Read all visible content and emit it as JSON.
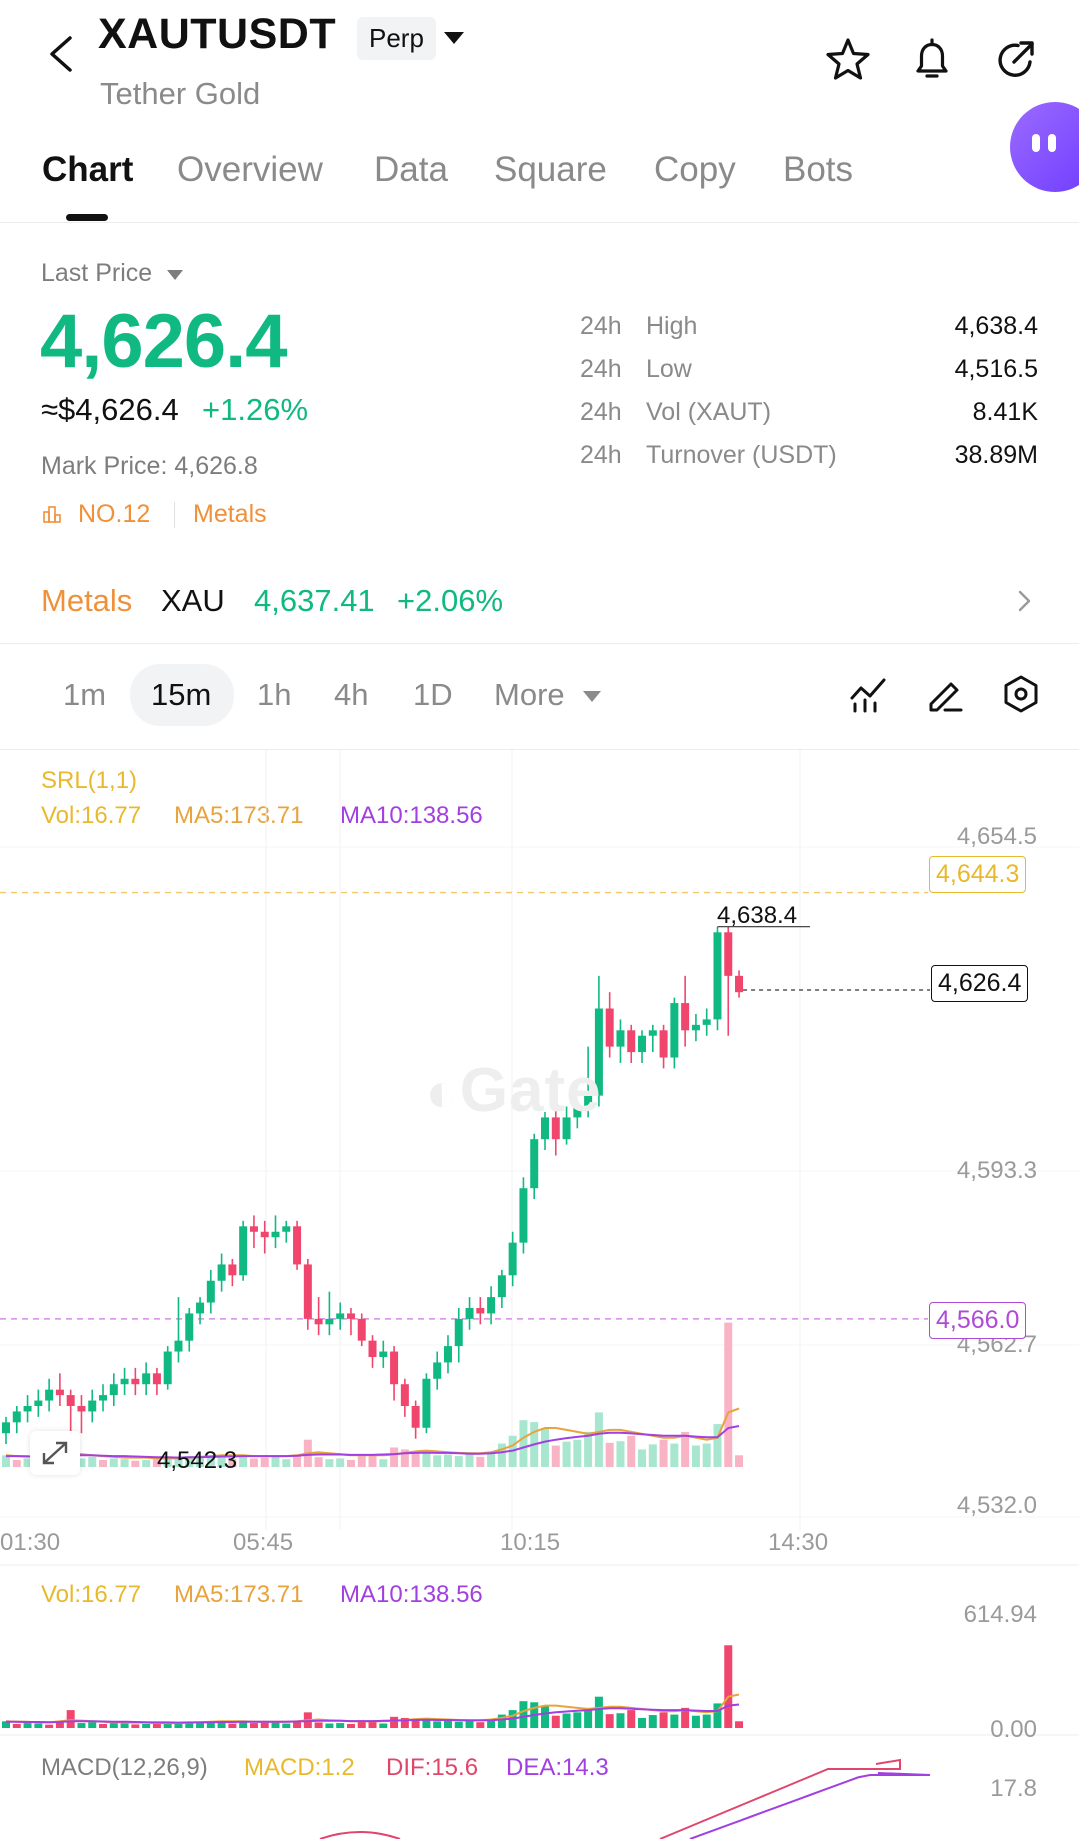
{
  "header": {
    "symbol": "XAUTUSDT",
    "contract_type": "Perp",
    "name": "Tether Gold",
    "icons": [
      "back-arrow-icon",
      "star-icon",
      "bell-icon",
      "share-icon",
      "chat-bubble-icon"
    ]
  },
  "tabs": [
    {
      "label": "Chart",
      "active": true
    },
    {
      "label": "Overview",
      "active": false
    },
    {
      "label": "Data",
      "active": false
    },
    {
      "label": "Square",
      "active": false
    },
    {
      "label": "Copy",
      "active": false
    },
    {
      "label": "Bots",
      "active": false
    }
  ],
  "price": {
    "label": "Last Price",
    "last": "4,626.4",
    "usd": "≈$4,626.4",
    "change": "+1.26%",
    "mark": "Mark Price: 4,626.8",
    "rank": "NO.12",
    "category": "Metals"
  },
  "stats": [
    {
      "period": "24h",
      "label": "High",
      "value": "4,638.4"
    },
    {
      "period": "24h",
      "label": "Low",
      "value": "4,516.5"
    },
    {
      "period": "24h",
      "label": "Vol (XAUT)",
      "value": "8.41K"
    },
    {
      "period": "24h",
      "label": "Turnover (USDT)",
      "value": "38.89M"
    }
  ],
  "index": {
    "category": "Metals",
    "symbol": "XAU",
    "price": "4,637.41",
    "change": "+2.06%"
  },
  "intervals": [
    {
      "label": "1m",
      "active": false
    },
    {
      "label": "15m",
      "active": true
    },
    {
      "label": "1h",
      "active": false
    },
    {
      "label": "4h",
      "active": false
    },
    {
      "label": "1D",
      "active": false
    },
    {
      "label": "More",
      "active": false
    }
  ],
  "tool_icons": [
    "indicator-icon",
    "draw-pen-icon",
    "settings-hex-icon"
  ],
  "indicators": {
    "srl": "SRL(1,1)",
    "vol": "Vol:16.77",
    "ma5": "MA5:173.71",
    "ma10": "MA10:138.56",
    "macd_name": "MACD(12,26,9)",
    "macd": "MACD:1.2",
    "dif": "DIF:15.6",
    "dea": "DEA:14.3"
  },
  "colors": {
    "up": "#10b981",
    "down": "#f0456c",
    "accent": "#f0913a",
    "ma5": "#e8a33d",
    "ma10": "#a23fe0",
    "srl_high": "#e8b92d",
    "srl_low": "#b04ad6"
  },
  "watermark": "Gate",
  "chart_data": {
    "type": "candlestick",
    "y_ticks": [
      "4,654.5",
      "4,593.3",
      "4,562.7",
      "4,532.0"
    ],
    "y_range": [
      4532.0,
      4654.5
    ],
    "x_ticks": [
      "01:30",
      "05:45",
      "10:15",
      "14:30"
    ],
    "last_price_tag": "4,626.4",
    "srl_high_tag": "4,644.3",
    "srl_low_tag": "4,566.0",
    "high_label": "4,638.4",
    "low_label": "4,542.3",
    "volume_axis": [
      "614.94",
      "0.00"
    ],
    "macd_axis_top": "17.8",
    "candles": [
      [
        4545,
        4547,
        4543,
        4548,
        1
      ],
      [
        4547,
        4549,
        4545,
        4550,
        1
      ],
      [
        4549,
        4550,
        4547,
        4552,
        1
      ],
      [
        4550,
        4551,
        4548,
        4553,
        1
      ],
      [
        4551,
        4553,
        4549,
        4555,
        1
      ],
      [
        4553,
        4552,
        4550,
        4556,
        0
      ],
      [
        4552,
        4550,
        4542,
        4553,
        0
      ],
      [
        4550,
        4549,
        4545,
        4552,
        0
      ],
      [
        4549,
        4551,
        4547,
        4553,
        1
      ],
      [
        4551,
        4552,
        4549,
        4554,
        1
      ],
      [
        4552,
        4554,
        4550,
        4556,
        1
      ],
      [
        4554,
        4555,
        4552,
        4557,
        1
      ],
      [
        4555,
        4554,
        4552,
        4557,
        0
      ],
      [
        4554,
        4556,
        4552,
        4558,
        1
      ],
      [
        4556,
        4554,
        4552,
        4557,
        0
      ],
      [
        4554,
        4560,
        4553,
        4561,
        1
      ],
      [
        4560,
        4562,
        4558,
        4570,
        1
      ],
      [
        4562,
        4567,
        4560,
        4568,
        1
      ],
      [
        4567,
        4569,
        4565,
        4570,
        1
      ],
      [
        4569,
        4573,
        4567,
        4575,
        1
      ],
      [
        4573,
        4576,
        4571,
        4578,
        1
      ],
      [
        4576,
        4574,
        4572,
        4577,
        0
      ],
      [
        4574,
        4583,
        4573,
        4584,
        1
      ],
      [
        4583,
        4582,
        4579,
        4585,
        0
      ],
      [
        4582,
        4581,
        4578,
        4584,
        0
      ],
      [
        4581,
        4582,
        4579,
        4585,
        1
      ],
      [
        4582,
        4583,
        4580,
        4584,
        1
      ],
      [
        4583,
        4576,
        4575,
        4584,
        0
      ],
      [
        4576,
        4566,
        4564,
        4577,
        0
      ],
      [
        4566,
        4565,
        4563,
        4570,
        0
      ],
      [
        4565,
        4566,
        4563,
        4571,
        1
      ],
      [
        4566,
        4567,
        4564,
        4569,
        1
      ],
      [
        4567,
        4566,
        4563,
        4568,
        0
      ],
      [
        4566,
        4562,
        4561,
        4567,
        0
      ],
      [
        4562,
        4559,
        4557,
        4563,
        0
      ],
      [
        4559,
        4560,
        4557,
        4562,
        1
      ],
      [
        4560,
        4554,
        4551,
        4561,
        0
      ],
      [
        4554,
        4550,
        4548,
        4555,
        0
      ],
      [
        4550,
        4546,
        4544,
        4551,
        0
      ],
      [
        4546,
        4555,
        4545,
        4556,
        1
      ],
      [
        4555,
        4558,
        4553,
        4560,
        1
      ],
      [
        4558,
        4561,
        4556,
        4563,
        1
      ],
      [
        4561,
        4566,
        4558,
        4568,
        1
      ],
      [
        4566,
        4568,
        4564,
        4570,
        1
      ],
      [
        4568,
        4567,
        4565,
        4570,
        0
      ],
      [
        4567,
        4570,
        4565,
        4572,
        1
      ],
      [
        4570,
        4574,
        4568,
        4575,
        1
      ],
      [
        4574,
        4580,
        4572,
        4582,
        1
      ],
      [
        4580,
        4590,
        4578,
        4592,
        1
      ],
      [
        4590,
        4599,
        4588,
        4600,
        1
      ],
      [
        4599,
        4603,
        4597,
        4604,
        1
      ],
      [
        4603,
        4599,
        4596,
        4605,
        0
      ],
      [
        4599,
        4603,
        4598,
        4605,
        1
      ],
      [
        4603,
        4605,
        4601,
        4606,
        1
      ],
      [
        4605,
        4607,
        4603,
        4616,
        1
      ],
      [
        4607,
        4623,
        4605,
        4629,
        1
      ],
      [
        4623,
        4616,
        4614,
        4626,
        0
      ],
      [
        4616,
        4619,
        4613,
        4621,
        1
      ],
      [
        4619,
        4615,
        4613,
        4620,
        0
      ],
      [
        4615,
        4618,
        4613,
        4619,
        1
      ],
      [
        4618,
        4619,
        4615,
        4620,
        1
      ],
      [
        4619,
        4614,
        4612,
        4620,
        0
      ],
      [
        4614,
        4624,
        4612,
        4625,
        1
      ],
      [
        4624,
        4619,
        4616,
        4629,
        0
      ],
      [
        4619,
        4620,
        4617,
        4622,
        1
      ],
      [
        4620,
        4621,
        4618,
        4623,
        1
      ],
      [
        4621,
        4637,
        4619,
        4638,
        1
      ],
      [
        4637,
        4629,
        4618,
        4638,
        0
      ],
      [
        4629,
        4626,
        4625,
        4630,
        0
      ]
    ],
    "volumes": [
      [
        30,
        1
      ],
      [
        18,
        0
      ],
      [
        22,
        1
      ],
      [
        20,
        1
      ],
      [
        15,
        0
      ],
      [
        28,
        0
      ],
      [
        80,
        0
      ],
      [
        22,
        1
      ],
      [
        26,
        1
      ],
      [
        18,
        0
      ],
      [
        22,
        1
      ],
      [
        20,
        1
      ],
      [
        16,
        0
      ],
      [
        18,
        1
      ],
      [
        20,
        0
      ],
      [
        22,
        1
      ],
      [
        25,
        1
      ],
      [
        28,
        1
      ],
      [
        24,
        1
      ],
      [
        30,
        1
      ],
      [
        26,
        1
      ],
      [
        20,
        0
      ],
      [
        32,
        1
      ],
      [
        22,
        0
      ],
      [
        24,
        0
      ],
      [
        28,
        1
      ],
      [
        20,
        1
      ],
      [
        30,
        0
      ],
      [
        70,
        0
      ],
      [
        25,
        0
      ],
      [
        20,
        1
      ],
      [
        22,
        1
      ],
      [
        18,
        0
      ],
      [
        28,
        0
      ],
      [
        30,
        0
      ],
      [
        20,
        1
      ],
      [
        50,
        0
      ],
      [
        45,
        0
      ],
      [
        40,
        0
      ],
      [
        35,
        1
      ],
      [
        30,
        1
      ],
      [
        32,
        1
      ],
      [
        28,
        1
      ],
      [
        38,
        1
      ],
      [
        26,
        0
      ],
      [
        40,
        1
      ],
      [
        60,
        1
      ],
      [
        80,
        1
      ],
      [
        120,
        1
      ],
      [
        115,
        1
      ],
      [
        100,
        1
      ],
      [
        55,
        0
      ],
      [
        65,
        1
      ],
      [
        70,
        1
      ],
      [
        90,
        1
      ],
      [
        140,
        1
      ],
      [
        62,
        0
      ],
      [
        66,
        1
      ],
      [
        80,
        0
      ],
      [
        45,
        1
      ],
      [
        58,
        1
      ],
      [
        70,
        0
      ],
      [
        60,
        1
      ],
      [
        90,
        0
      ],
      [
        55,
        1
      ],
      [
        60,
        1
      ],
      [
        110,
        1
      ],
      [
        370,
        0
      ],
      [
        30,
        0
      ]
    ],
    "ma5_volume": [
      30,
      28,
      28,
      25,
      25,
      30,
      35,
      33,
      30,
      28,
      26,
      24,
      24,
      24,
      22,
      22,
      22,
      24,
      26,
      28,
      30,
      30,
      30,
      28,
      28,
      28,
      28,
      30,
      35,
      38,
      35,
      33,
      30,
      30,
      30,
      30,
      32,
      36,
      40,
      42,
      40,
      38,
      36,
      35,
      35,
      38,
      45,
      55,
      75,
      90,
      100,
      100,
      95,
      90,
      85,
      90,
      95,
      95,
      90,
      85,
      80,
      75,
      75,
      80,
      75,
      70,
      75,
      140,
      150
    ],
    "ma10_volume": [
      28,
      28,
      27,
      27,
      26,
      27,
      30,
      30,
      30,
      29,
      28,
      28,
      27,
      26,
      25,
      25,
      24,
      25,
      25,
      26,
      27,
      27,
      28,
      28,
      28,
      28,
      28,
      29,
      31,
      32,
      32,
      32,
      31,
      31,
      31,
      32,
      33,
      35,
      36,
      37,
      36,
      36,
      35,
      34,
      34,
      35,
      38,
      42,
      50,
      58,
      65,
      70,
      74,
      77,
      80,
      85,
      88,
      88,
      86,
      84,
      82,
      80,
      80,
      80,
      78,
      76,
      76,
      100,
      105
    ]
  }
}
